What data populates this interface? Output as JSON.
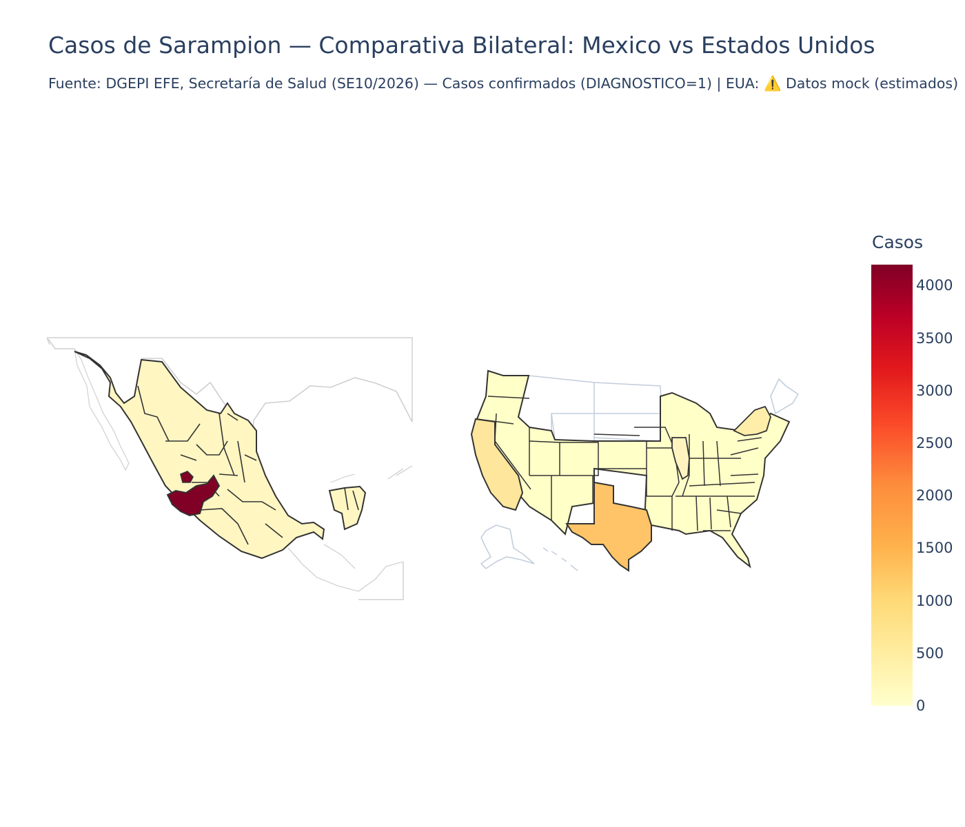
{
  "title": "Casos de Sarampion — Comparativa Bilateral: Mexico vs Estados Unidos",
  "subtitle": "Fuente: DGEPI EFE, Secretaría de Salud (SE10/2026) — Casos confirmados (DIAGNOSTICO=1) | EUA: ⚠️ Datos mock (estimados)",
  "colorbar": {
    "title": "Casos",
    "min": 0,
    "max": 4200,
    "colorscale": [
      "#ffffcc",
      "#ffeda0",
      "#fed976",
      "#feb24c",
      "#fd8d3c",
      "#fc4e2a",
      "#e31a1c",
      "#bd0026",
      "#800026"
    ],
    "ticks": [
      "0",
      "500",
      "1000",
      "1500",
      "2000",
      "2500",
      "3000",
      "3500",
      "4000"
    ]
  },
  "maps": {
    "mexico": {
      "highlighted_state": "Jalisco",
      "highlighted_value": 4200,
      "other_level": 150
    },
    "usa": {
      "highlighted_states": [
        {
          "state": "Texas",
          "value": 1500
        },
        {
          "state": "California",
          "value": 800
        },
        {
          "state": "New York",
          "value": 500
        },
        {
          "state": "Illinois",
          "value": 300
        }
      ],
      "other_level": 80
    }
  },
  "colors": {
    "text": "#2a3f5f",
    "outline": "#333333",
    "context_border": "#c8c8c8",
    "us_context_border": "#c3cfdd"
  }
}
